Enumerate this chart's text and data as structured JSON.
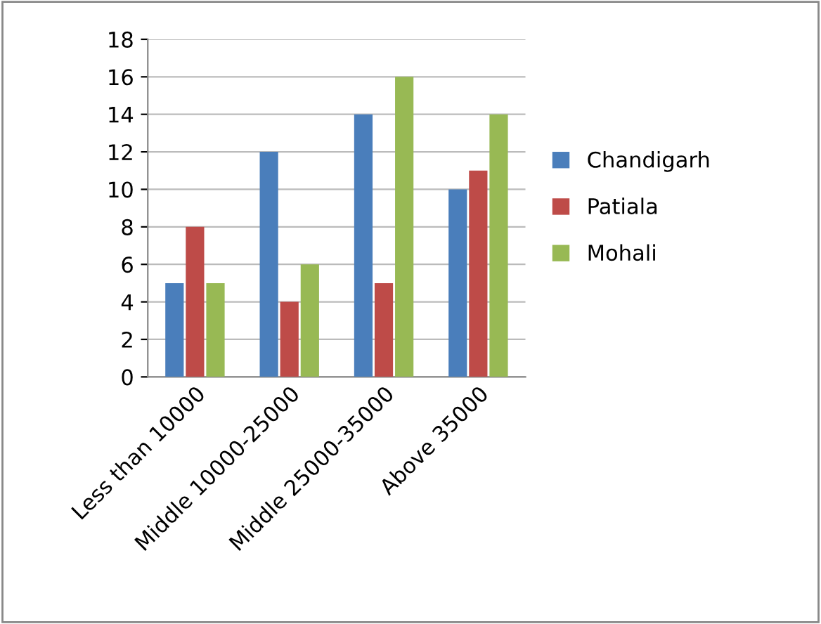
{
  "chart_data": {
    "type": "bar",
    "categories": [
      "Less than 10000",
      "Middle 10000-25000",
      "Middle 25000-35000",
      "Above 35000"
    ],
    "series": [
      {
        "name": "Chandigarh",
        "color": "#4a7ebb",
        "values": [
          5,
          12,
          14,
          10
        ]
      },
      {
        "name": "Patiala",
        "color": "#be4b48",
        "values": [
          8,
          4,
          5,
          11
        ]
      },
      {
        "name": "Mohali",
        "color": "#98b954",
        "values": [
          5,
          6,
          16,
          14
        ]
      }
    ],
    "ylim": [
      0,
      18
    ],
    "yticks": [
      0,
      2,
      4,
      6,
      8,
      10,
      12,
      14,
      16,
      18
    ],
    "grid": "y",
    "legend": "right"
  }
}
